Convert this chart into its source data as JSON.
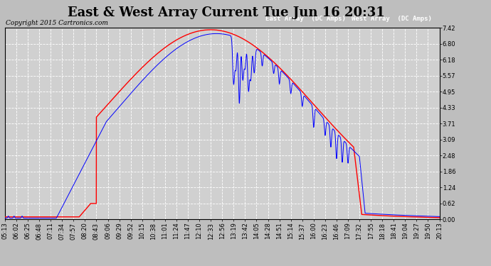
{
  "title": "East & West Array Current Tue Jun 16 20:31",
  "copyright": "Copyright 2015 Cartronics.com",
  "legend_east": "East Array  (DC Amps)",
  "legend_west": "West Array  (DC Amps)",
  "east_color": "#0000ff",
  "west_color": "#ff0000",
  "bg_color": "#bebebe",
  "plot_bg_color": "#d0d0d0",
  "yticks": [
    0.0,
    0.62,
    1.24,
    1.86,
    2.48,
    3.09,
    3.71,
    4.33,
    4.95,
    5.57,
    6.18,
    6.8,
    7.42
  ],
  "ymax": 7.42,
  "xtick_labels": [
    "05:13",
    "06:02",
    "06:25",
    "06:48",
    "07:11",
    "07:34",
    "07:57",
    "08:20",
    "08:43",
    "09:06",
    "09:29",
    "09:52",
    "10:15",
    "10:38",
    "11:01",
    "11:24",
    "11:47",
    "12:10",
    "12:33",
    "12:56",
    "13:19",
    "13:42",
    "14:05",
    "14:28",
    "14:51",
    "15:14",
    "15:37",
    "16:00",
    "16:23",
    "16:46",
    "17:09",
    "17:32",
    "17:55",
    "18:18",
    "18:41",
    "19:04",
    "19:27",
    "19:50",
    "20:13"
  ],
  "title_fontsize": 13,
  "copyright_fontsize": 6.5,
  "legend_fontsize": 6.5,
  "tick_fontsize": 6,
  "label_bg_east": "#0000bb",
  "label_bg_west": "#cc0000",
  "label_text_color": "#ffffff"
}
